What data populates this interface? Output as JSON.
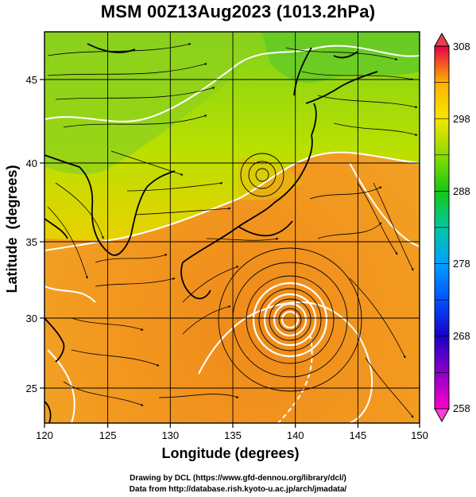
{
  "header": {
    "title": "MSM 00Z13Aug2023 (1013.2hPa)"
  },
  "map": {
    "xlabel": "Longitude (degrees)",
    "ylabel": "Latitude  (degrees)",
    "lon_range": [
      120,
      150
    ],
    "lat_range": [
      22.4,
      47.6
    ],
    "lon_ticks": [
      "120",
      "125",
      "130",
      "135",
      "140",
      "145",
      "150"
    ],
    "lat_ticks": [
      "25",
      "30",
      "35",
      "40",
      "45"
    ],
    "grid": true
  },
  "colorbar": {
    "min": 258,
    "max": 308,
    "labels": [
      "308",
      "298",
      "288",
      "278",
      "268",
      "258"
    ],
    "colors": [
      "#e6004a",
      "#ff6a00",
      "#ffb000",
      "#f5e600",
      "#8cdc00",
      "#14c814",
      "#00c8a0",
      "#00a0ff",
      "#0050ff",
      "#1a00c8",
      "#a000c8",
      "#ff00c8"
    ]
  },
  "credits": {
    "line1": "Drawing by DCL (https://www.gfd-dennou.org/library/dcl/)",
    "line2": "Data from http://database.rish.kyoto-u.ac.jp/arch/jmadata/"
  }
}
